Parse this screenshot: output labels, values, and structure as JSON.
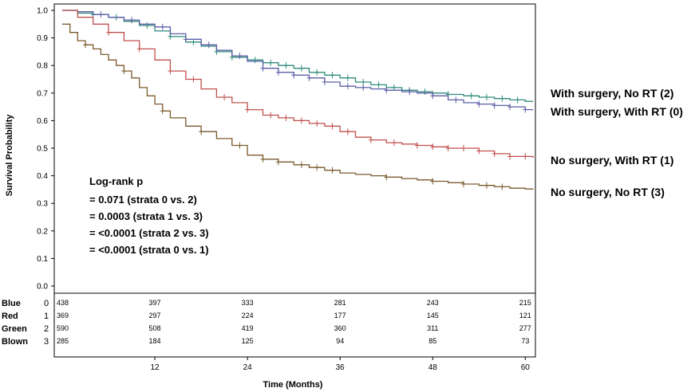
{
  "chart_data": {
    "type": "line",
    "subtype": "kaplan-meier",
    "xlabel": "Time (Months)",
    "ylabel": "Survival Probability",
    "xlim": [
      0,
      61
    ],
    "ylim": [
      0,
      1.0
    ],
    "x_ticks": [
      "12",
      "24",
      "36",
      "48",
      "60"
    ],
    "x_tick_values": [
      12,
      24,
      36,
      48,
      60
    ],
    "y_ticks": [
      "0.0",
      "0.1",
      "0.2",
      "0.3",
      "0.4",
      "0.5",
      "0.6",
      "0.7",
      "0.8",
      "0.9",
      "1.0"
    ],
    "y_tick_values": [
      0.0,
      0.1,
      0.2,
      0.3,
      0.4,
      0.5,
      0.6,
      0.7,
      0.8,
      0.9,
      1.0
    ],
    "grid": false,
    "series": [
      {
        "name": "With surgery, No RT (2)",
        "color": "#2e8b7a",
        "x": [
          0,
          2,
          4,
          6,
          8,
          10,
          12,
          14,
          16,
          18,
          20,
          22,
          24,
          26,
          28,
          30,
          32,
          34,
          36,
          38,
          40,
          42,
          44,
          46,
          48,
          50,
          52,
          54,
          56,
          58,
          60,
          61
        ],
        "y": [
          1.0,
          0.99,
          0.985,
          0.975,
          0.96,
          0.945,
          0.925,
          0.905,
          0.885,
          0.87,
          0.85,
          0.83,
          0.82,
          0.81,
          0.8,
          0.79,
          0.775,
          0.765,
          0.755,
          0.74,
          0.73,
          0.72,
          0.71,
          0.705,
          0.7,
          0.695,
          0.69,
          0.685,
          0.68,
          0.675,
          0.67,
          0.67
        ],
        "censor_x": [
          4,
          7,
          11,
          14,
          17,
          20,
          22,
          25,
          27,
          29,
          31,
          33,
          35,
          37,
          39,
          41,
          43,
          45,
          47,
          50,
          53,
          55,
          57,
          59
        ]
      },
      {
        "name": "With surgery, With RT (0)",
        "color": "#5b5ea6",
        "x": [
          0,
          2,
          4,
          6,
          8,
          10,
          12,
          14,
          16,
          18,
          20,
          22,
          24,
          26,
          28,
          30,
          32,
          34,
          36,
          38,
          40,
          42,
          44,
          46,
          48,
          50,
          52,
          54,
          56,
          58,
          60,
          61
        ],
        "y": [
          1.0,
          0.995,
          0.985,
          0.975,
          0.965,
          0.95,
          0.94,
          0.915,
          0.895,
          0.875,
          0.855,
          0.835,
          0.815,
          0.79,
          0.775,
          0.765,
          0.755,
          0.74,
          0.725,
          0.72,
          0.715,
          0.71,
          0.705,
          0.7,
          0.69,
          0.675,
          0.665,
          0.66,
          0.655,
          0.65,
          0.64,
          0.64
        ],
        "censor_x": [
          5,
          9,
          13,
          16,
          19,
          23,
          26,
          28,
          30,
          32,
          34,
          37,
          39,
          42,
          45,
          48,
          51,
          54,
          56,
          58,
          60
        ]
      },
      {
        "name": "No surgery, With RT (1)",
        "color": "#c0504d",
        "x": [
          0,
          2,
          4,
          6,
          8,
          10,
          12,
          14,
          16,
          18,
          20,
          22,
          24,
          26,
          28,
          30,
          32,
          34,
          36,
          38,
          40,
          42,
          44,
          46,
          48,
          50,
          52,
          54,
          56,
          58,
          60,
          61
        ],
        "y": [
          1.0,
          0.975,
          0.95,
          0.92,
          0.89,
          0.86,
          0.82,
          0.78,
          0.75,
          0.715,
          0.685,
          0.665,
          0.64,
          0.62,
          0.61,
          0.6,
          0.59,
          0.58,
          0.56,
          0.54,
          0.53,
          0.52,
          0.515,
          0.51,
          0.505,
          0.5,
          0.5,
          0.49,
          0.48,
          0.47,
          0.47,
          0.465
        ],
        "censor_x": [
          6,
          10,
          14,
          17,
          21,
          24,
          27,
          29,
          31,
          33,
          35,
          37,
          40,
          43,
          46,
          48,
          50,
          52,
          54,
          56,
          58,
          60
        ]
      },
      {
        "name": "No surgery, No RT (3)",
        "color": "#7a5a2e",
        "x": [
          0,
          1,
          2,
          3,
          4,
          5,
          6,
          7,
          8,
          9,
          10,
          11,
          12,
          13,
          14,
          16,
          18,
          20,
          22,
          24,
          26,
          28,
          30,
          32,
          34,
          36,
          38,
          40,
          42,
          44,
          46,
          48,
          50,
          52,
          54,
          56,
          58,
          60,
          61
        ],
        "y": [
          0.95,
          0.92,
          0.89,
          0.875,
          0.86,
          0.84,
          0.82,
          0.8,
          0.78,
          0.755,
          0.72,
          0.69,
          0.66,
          0.635,
          0.61,
          0.58,
          0.56,
          0.535,
          0.51,
          0.475,
          0.46,
          0.45,
          0.44,
          0.43,
          0.42,
          0.41,
          0.405,
          0.4,
          0.395,
          0.39,
          0.385,
          0.38,
          0.375,
          0.37,
          0.365,
          0.36,
          0.355,
          0.352,
          0.35
        ],
        "censor_x": [
          3,
          8,
          13,
          18,
          23,
          26,
          28,
          31,
          33,
          35,
          42,
          48,
          52,
          55,
          57
        ]
      }
    ],
    "legend": [
      {
        "label": "With surgery, No RT (2)",
        "position": "right"
      },
      {
        "label": "With surgery, With RT (0)",
        "position": "right"
      },
      {
        "label": "No surgery, With RT (1)",
        "position": "right"
      },
      {
        "label": "No surgery, No RT (3)",
        "position": "right"
      }
    ],
    "annotation": {
      "lines": [
        "Log-rank p",
        "= 0.071 (strata  0 vs. 2)",
        "= 0.0003 (strata  1 vs. 3)",
        "= <0.0001 (strata  2 vs. 3)",
        "= <0.0001 (strata  0 vs. 1)"
      ]
    },
    "risk_table": {
      "rows": [
        {
          "label": "Blue",
          "code": "0",
          "values": [
            "438",
            "397",
            "333",
            "281",
            "243",
            "215"
          ]
        },
        {
          "label": "Red",
          "code": "1",
          "values": [
            "369",
            "297",
            "224",
            "177",
            "145",
            "121"
          ]
        },
        {
          "label": "Green",
          "code": "2",
          "values": [
            "590",
            "508",
            "419",
            "360",
            "311",
            "277"
          ]
        },
        {
          "label": "Blown",
          "code": "3",
          "values": [
            "285",
            "184",
            "125",
            "94",
            "85",
            "73"
          ]
        }
      ],
      "times": [
        0,
        12,
        24,
        36,
        48,
        60
      ]
    }
  }
}
